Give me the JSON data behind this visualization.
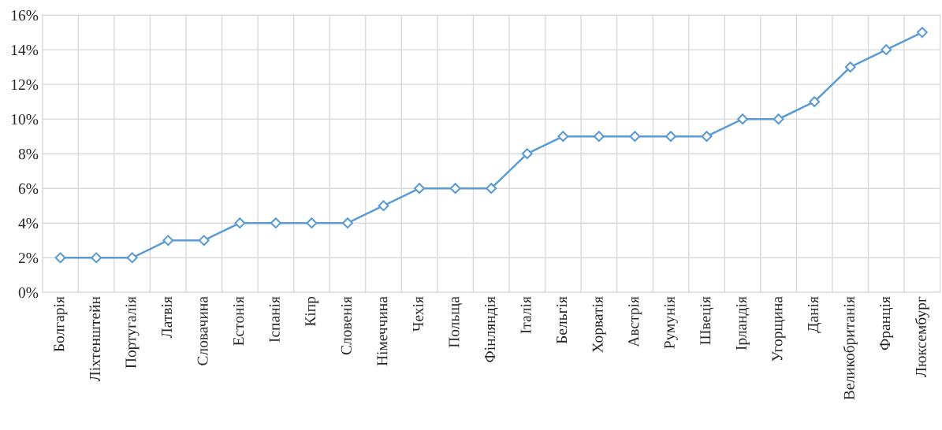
{
  "chart_data": {
    "type": "line",
    "categories": [
      "Болгарія",
      "Ліхтенштейн",
      "Португалія",
      "Латвія",
      "Словачина",
      "Естонія",
      "Іспанія",
      "Кіпр",
      "Словенія",
      "Німеччина",
      "Чехія",
      "Польща",
      "Фінляндія",
      "Італія",
      "Бельгія",
      "Хорватія",
      "Австрія",
      "Румунія",
      "Швеція",
      "Ірландія",
      "Угорщина",
      "Данія",
      "Великобританія",
      "Франція",
      "Люксембург"
    ],
    "series": [
      {
        "color": "#5b9bd5",
        "values": [
          2,
          2,
          2,
          3,
          3,
          4,
          4,
          4,
          4,
          5,
          6,
          6,
          6,
          8,
          9,
          9,
          9,
          9,
          9,
          10,
          10,
          11,
          13,
          14,
          15
        ]
      }
    ],
    "ylim": [
      0,
      16
    ],
    "yticks": [
      {
        "value": 0,
        "label": "0%"
      },
      {
        "value": 2,
        "label": "2%"
      },
      {
        "value": 4,
        "label": "4%"
      },
      {
        "value": 6,
        "label": "6%"
      },
      {
        "value": 8,
        "label": "8%"
      },
      {
        "value": 10,
        "label": "10%"
      },
      {
        "value": 12,
        "label": "12%"
      },
      {
        "value": 14,
        "label": "14%"
      },
      {
        "value": 16,
        "label": "16%"
      }
    ],
    "grid": true,
    "marker": "diamond",
    "line_style": "solid",
    "legend": false
  }
}
